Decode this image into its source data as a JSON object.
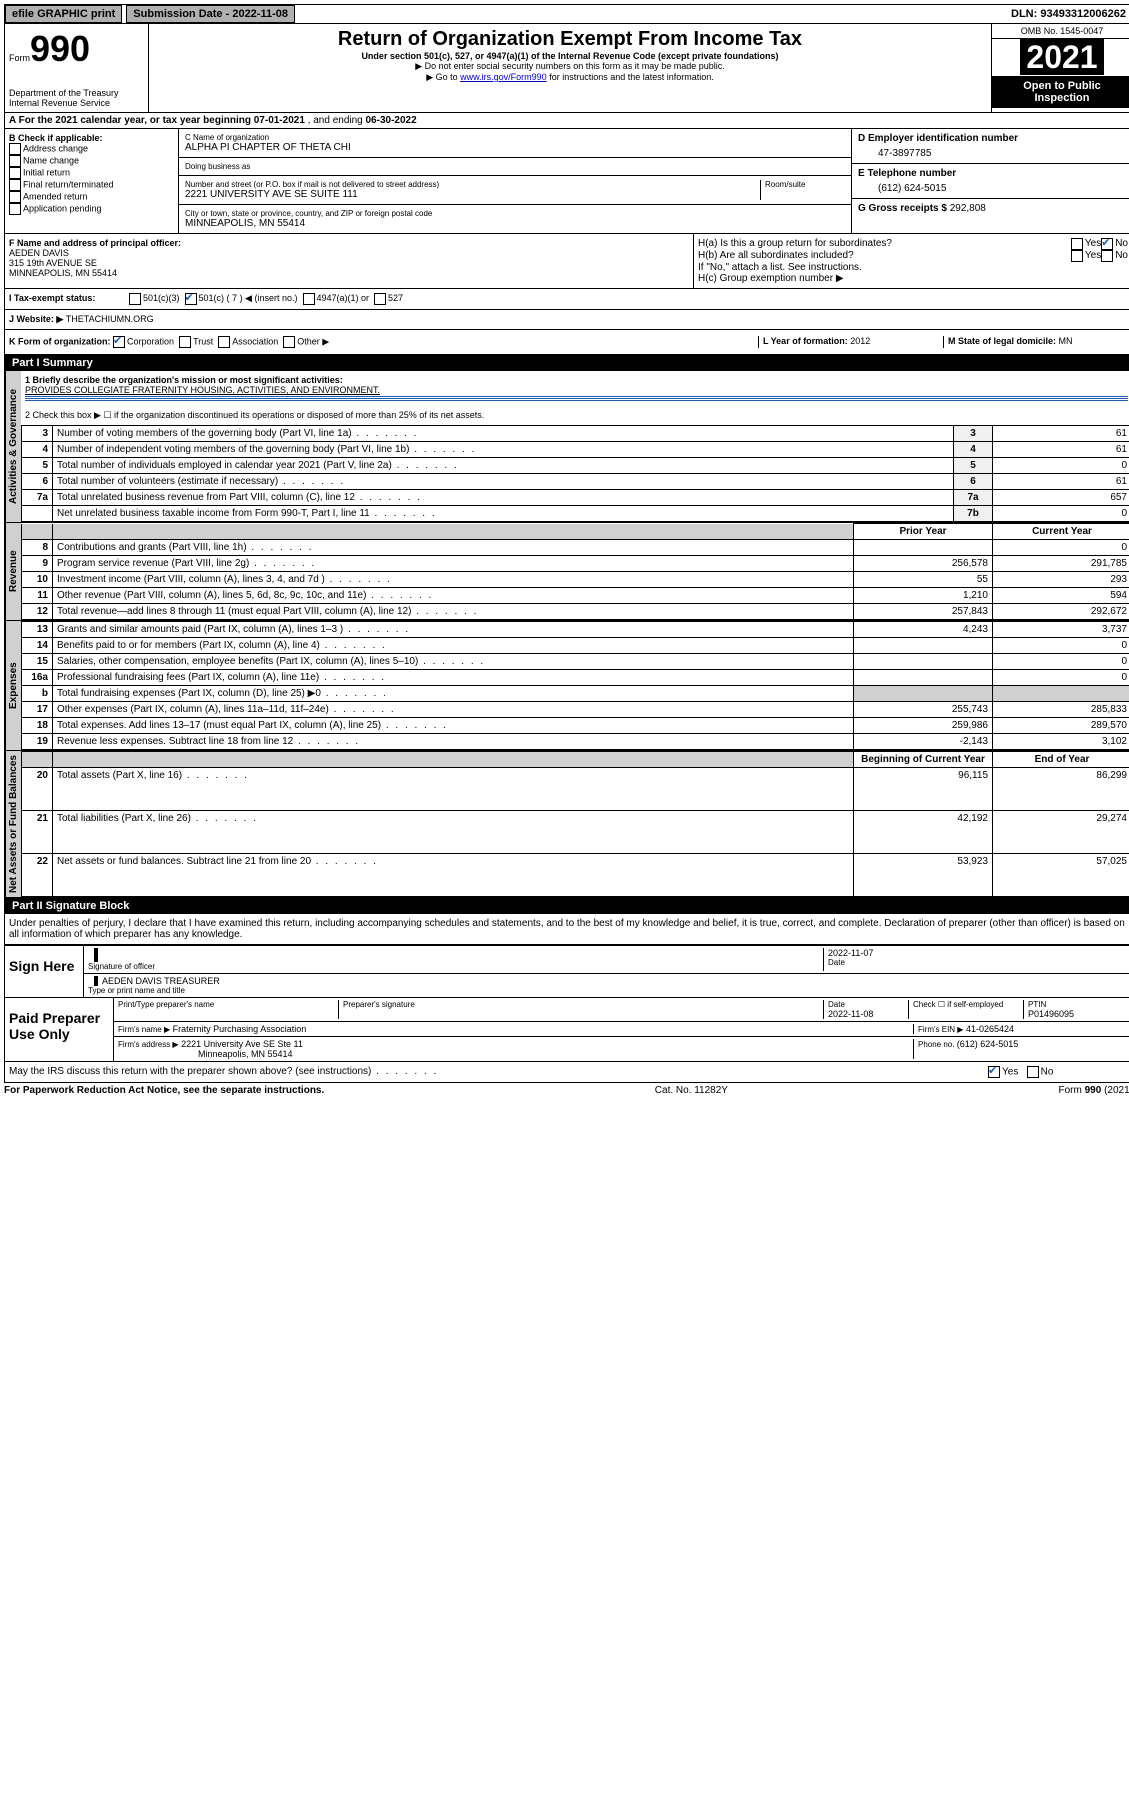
{
  "topbar": {
    "efile": "efile GRAPHIC print",
    "submission_label": "Submission Date - ",
    "submission_date": "2022-11-08",
    "dln_label": "DLN: ",
    "dln": "93493312006262"
  },
  "header": {
    "form_word": "Form",
    "form_num": "990",
    "dept": "Department of the Treasury",
    "irs": "Internal Revenue Service",
    "title": "Return of Organization Exempt From Income Tax",
    "subtitle": "Under section 501(c), 527, or 4947(a)(1) of the Internal Revenue Code (except private foundations)",
    "note1": "▶ Do not enter social security numbers on this form as it may be made public.",
    "note2_pre": "▶ Go to ",
    "note2_link": "www.irs.gov/Form990",
    "note2_post": " for instructions and the latest information.",
    "omb": "OMB No. 1545-0047",
    "year": "2021",
    "open": "Open to Public Inspection"
  },
  "line_a": {
    "text_pre": "A For the 2021 calendar year, or tax year beginning ",
    "begin": "07-01-2021",
    "mid": " , and ending ",
    "end": "06-30-2022"
  },
  "box_b": {
    "label": "B Check if applicable:",
    "opts": [
      "Address change",
      "Name change",
      "Initial return",
      "Final return/terminated",
      "Amended return",
      "Application pending"
    ]
  },
  "box_c": {
    "name_label": "C Name of organization",
    "name": "ALPHA PI CHAPTER OF THETA CHI",
    "dba_label": "Doing business as",
    "dba": "",
    "addr_label": "Number and street (or P.O. box if mail is not delivered to street address)",
    "room_label": "Room/suite",
    "addr": "2221 UNIVERSITY AVE SE SUITE 111",
    "city_label": "City or town, state or province, country, and ZIP or foreign postal code",
    "city": "MINNEAPOLIS, MN  55414"
  },
  "box_d": {
    "label": "D Employer identification number",
    "val": "47-3897785"
  },
  "box_e": {
    "label": "E Telephone number",
    "val": "(612) 624-5015"
  },
  "box_g": {
    "label": "G Gross receipts $ ",
    "val": "292,808"
  },
  "box_f": {
    "label": "F Name and address of principal officer:",
    "name": "AEDEN DAVIS",
    "addr1": "315 19th AVENUE SE",
    "addr2": "MINNEAPOLIS, MN  55414"
  },
  "box_h": {
    "ha": "H(a)  Is this a group return for subordinates?",
    "hb": "H(b)  Are all subordinates included?",
    "hb_note": "If \"No,\" attach a list. See instructions.",
    "hc": "H(c)  Group exemption number ▶",
    "yes": "Yes",
    "no": "No"
  },
  "line_i": {
    "label": "I   Tax-exempt status:",
    "o1": "501(c)(3)",
    "o2": "501(c) ( 7 ) ◀ (insert no.)",
    "o3": "4947(a)(1) or",
    "o4": "527"
  },
  "line_j": {
    "label": "J   Website: ▶ ",
    "val": "THETACHIUMN.ORG"
  },
  "line_k": {
    "label": "K Form of organization:",
    "o1": "Corporation",
    "o2": "Trust",
    "o3": "Association",
    "o4": "Other ▶"
  },
  "line_l": {
    "label": "L Year of formation: ",
    "val": "2012"
  },
  "line_m": {
    "label": "M State of legal domicile: ",
    "val": "MN"
  },
  "part1": {
    "title": "Part I      Summary",
    "groups": {
      "gov": "Activities & Governance",
      "rev": "Revenue",
      "exp": "Expenses",
      "net": "Net Assets or Fund Balances"
    },
    "line1_label": "1   Briefly describe the organization's mission or most significant activities:",
    "line1_val": "PROVIDES COLLEGIATE FRATERNITY HOUSING, ACTIVITIES, AND ENVIRONMENT.",
    "line2": "2   Check this box ▶ ☐  if the organization discontinued its operations or disposed of more than 25% of its net assets.",
    "rows_gov": [
      {
        "n": "3",
        "t": "Number of voting members of the governing body (Part VI, line 1a)",
        "k": "3",
        "v": "61"
      },
      {
        "n": "4",
        "t": "Number of independent voting members of the governing body (Part VI, line 1b)",
        "k": "4",
        "v": "61"
      },
      {
        "n": "5",
        "t": "Total number of individuals employed in calendar year 2021 (Part V, line 2a)",
        "k": "5",
        "v": "0"
      },
      {
        "n": "6",
        "t": "Total number of volunteers (estimate if necessary)",
        "k": "6",
        "v": "61"
      },
      {
        "n": "7a",
        "t": "Total unrelated business revenue from Part VIII, column (C), line 12",
        "k": "7a",
        "v": "657"
      },
      {
        "n": "",
        "t": "Net unrelated business taxable income from Form 990-T, Part I, line 11",
        "k": "7b",
        "v": "0"
      }
    ],
    "col_headers": {
      "prior": "Prior Year",
      "current": "Current Year",
      "begin": "Beginning of Current Year",
      "end": "End of Year"
    },
    "rows_rev": [
      {
        "n": "8",
        "t": "Contributions and grants (Part VIII, line 1h)",
        "p": "",
        "c": "0"
      },
      {
        "n": "9",
        "t": "Program service revenue (Part VIII, line 2g)",
        "p": "256,578",
        "c": "291,785"
      },
      {
        "n": "10",
        "t": "Investment income (Part VIII, column (A), lines 3, 4, and 7d )",
        "p": "55",
        "c": "293"
      },
      {
        "n": "11",
        "t": "Other revenue (Part VIII, column (A), lines 5, 6d, 8c, 9c, 10c, and 11e)",
        "p": "1,210",
        "c": "594"
      },
      {
        "n": "12",
        "t": "Total revenue—add lines 8 through 11 (must equal Part VIII, column (A), line 12)",
        "p": "257,843",
        "c": "292,672"
      }
    ],
    "rows_exp": [
      {
        "n": "13",
        "t": "Grants and similar amounts paid (Part IX, column (A), lines 1–3 )",
        "p": "4,243",
        "c": "3,737"
      },
      {
        "n": "14",
        "t": "Benefits paid to or for members (Part IX, column (A), line 4)",
        "p": "",
        "c": "0"
      },
      {
        "n": "15",
        "t": "Salaries, other compensation, employee benefits (Part IX, column (A), lines 5–10)",
        "p": "",
        "c": "0"
      },
      {
        "n": "16a",
        "t": "Professional fundraising fees (Part IX, column (A), line 11e)",
        "p": "",
        "c": "0"
      },
      {
        "n": "b",
        "t": "Total fundraising expenses (Part IX, column (D), line 25) ▶0",
        "p": "shaded",
        "c": "shaded"
      },
      {
        "n": "17",
        "t": "Other expenses (Part IX, column (A), lines 11a–11d, 11f–24e)",
        "p": "255,743",
        "c": "285,833"
      },
      {
        "n": "18",
        "t": "Total expenses. Add lines 13–17 (must equal Part IX, column (A), line 25)",
        "p": "259,986",
        "c": "289,570"
      },
      {
        "n": "19",
        "t": "Revenue less expenses. Subtract line 18 from line 12",
        "p": "-2,143",
        "c": "3,102"
      }
    ],
    "rows_net": [
      {
        "n": "20",
        "t": "Total assets (Part X, line 16)",
        "p": "96,115",
        "c": "86,299"
      },
      {
        "n": "21",
        "t": "Total liabilities (Part X, line 26)",
        "p": "42,192",
        "c": "29,274"
      },
      {
        "n": "22",
        "t": "Net assets or fund balances. Subtract line 21 from line 20",
        "p": "53,923",
        "c": "57,025"
      }
    ]
  },
  "part2": {
    "title": "Part II     Signature Block",
    "decl": "Under penalties of perjury, I declare that I have examined this return, including accompanying schedules and statements, and to the best of my knowledge and belief, it is true, correct, and complete. Declaration of preparer (other than officer) is based on all information of which preparer has any knowledge.",
    "sign_here": "Sign Here",
    "sig_officer": "Signature of officer",
    "date": "Date",
    "sig_date": "2022-11-07",
    "name_title": "AEDEN DAVIS  TREASURER",
    "name_title_label": "Type or print name and title",
    "paid": "Paid Preparer Use Only",
    "prep_name_label": "Print/Type preparer's name",
    "prep_sig_label": "Preparer's signature",
    "prep_date_label": "Date",
    "prep_date": "2022-11-08",
    "check_self": "Check ☐ if self-employed",
    "ptin_label": "PTIN",
    "ptin": "P01496095",
    "firm_name_label": "Firm's name     ▶",
    "firm_name": "Fraternity Purchasing Association",
    "firm_ein_label": "Firm's EIN ▶",
    "firm_ein": "41-0265424",
    "firm_addr_label": "Firm's address ▶",
    "firm_addr1": "2221 University Ave SE Ste 11",
    "firm_addr2": "Minneapolis, MN  55414",
    "phone_label": "Phone no. ",
    "phone": "(612) 624-5015",
    "discuss": "May the IRS discuss this return with the preparer shown above? (see instructions)"
  },
  "footer": {
    "left": "For Paperwork Reduction Act Notice, see the separate instructions.",
    "mid": "Cat. No. 11282Y",
    "right_pre": "Form ",
    "right_bold": "990",
    "right_post": " (2021)"
  }
}
